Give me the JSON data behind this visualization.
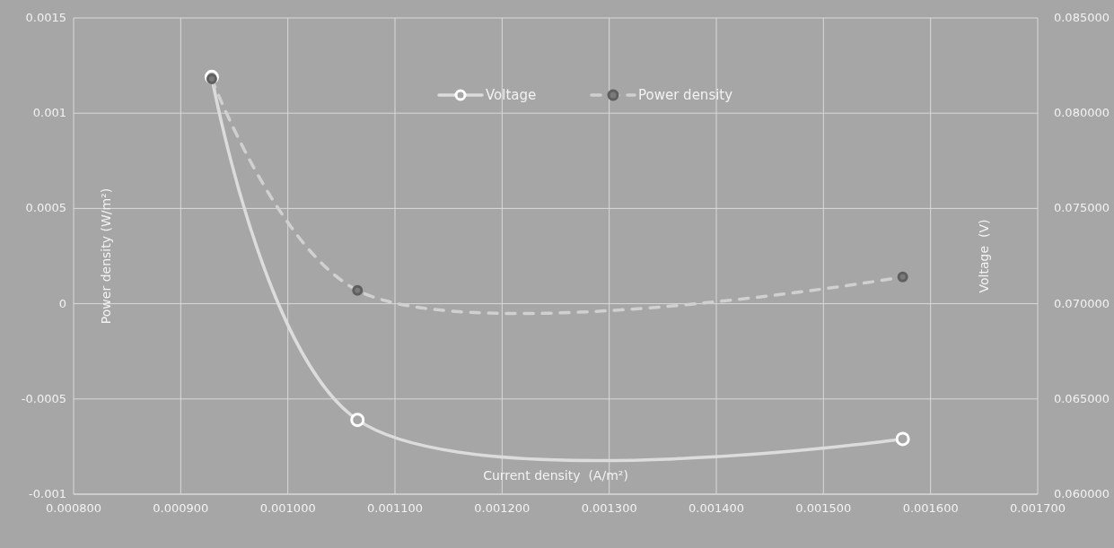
{
  "chart_data": {
    "type": "line",
    "xlabel": "Current density  (A/m²)",
    "ylabel": "Power density (W/m²)",
    "y2label": "Voltage  (V)",
    "x": [
      0.000929,
      0.001065,
      0.001574
    ],
    "series": [
      {
        "name": "Voltage",
        "color": "#dcdcdc",
        "values": [
          0.0819,
          0.0639,
          0.0629
        ],
        "axis": "y2",
        "line_style": "solid"
      },
      {
        "name": "Power density",
        "color": "#d0d0d0",
        "values": [
          0.00118,
          7e-05,
          0.00014
        ],
        "line_style": "dashed"
      }
    ],
    "xlim": [
      0.0008,
      0.0017
    ],
    "xticks": [
      {
        "value": 0.0008,
        "label": "0.000800"
      },
      {
        "value": 0.0009,
        "label": "0.000900"
      },
      {
        "value": 0.001,
        "label": "0.001000"
      },
      {
        "value": 0.0011,
        "label": "0.001100"
      },
      {
        "value": 0.0012,
        "label": "0.001200"
      },
      {
        "value": 0.0013,
        "label": "0.001300"
      },
      {
        "value": 0.0014,
        "label": "0.001400"
      },
      {
        "value": 0.0015,
        "label": "0.001500"
      },
      {
        "value": 0.0016,
        "label": "0.001600"
      },
      {
        "value": 0.0017,
        "label": "0.001700"
      }
    ],
    "ylim": [
      -0.001,
      0.0015
    ],
    "yticks": [
      -0.001,
      -0.0005,
      0,
      0.0005,
      0.001,
      0.0015
    ],
    "y2lim": [
      0.06,
      0.085
    ],
    "y2ticks": [
      {
        "value": 0.06,
        "label": "0.060000"
      },
      {
        "value": 0.065,
        "label": "0.065000"
      },
      {
        "value": 0.07,
        "label": "0.070000"
      },
      {
        "value": 0.075,
        "label": "0.075000"
      },
      {
        "value": 0.08,
        "label": "0.080000"
      },
      {
        "value": 0.085,
        "label": "0.085000"
      }
    ],
    "grid": true,
    "legend": "top",
    "marker": "circle"
  }
}
